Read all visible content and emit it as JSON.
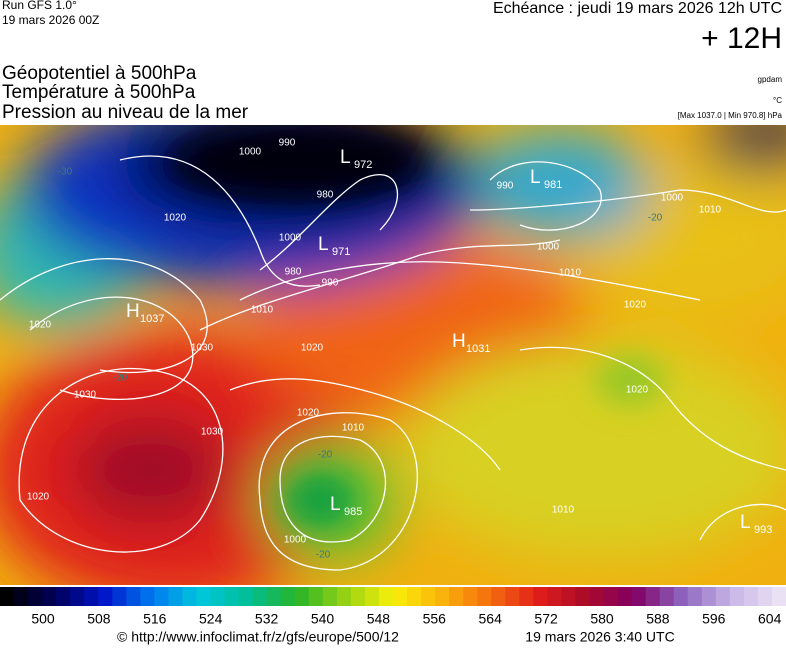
{
  "header": {
    "run": "Run GFS 1.0°",
    "run_date": "19 mars 2026 00Z",
    "echeance": "Echéance : jeudi 19 mars 2026 12h UTC",
    "lead": "+ 12H"
  },
  "titles": [
    "Géopotentiel à 500hPa",
    "Température à 500hPa",
    "Pression au niveau de la mer"
  ],
  "units": [
    "gpdam",
    "°C",
    "[Max 1037.0 | Min 970.8] hPa"
  ],
  "centers": [
    {
      "letter": "L",
      "value": 972
    },
    {
      "letter": "L",
      "value": 981
    },
    {
      "letter": "L",
      "value": 971
    },
    {
      "letter": "H",
      "value": 1037
    },
    {
      "letter": "H",
      "value": 1031
    },
    {
      "letter": "L",
      "value": 985
    },
    {
      "letter": "L",
      "value": 993
    }
  ],
  "isobar_labels": [
    990,
    1000,
    980,
    1000,
    980,
    990,
    990,
    1000,
    1010,
    1000,
    1010,
    1020,
    1020,
    1010,
    1020,
    1030,
    1020,
    1030,
    1030,
    1020,
    1010,
    1020,
    1020,
    1000,
    1010
  ],
  "temperature_labels": [
    -30,
    -20,
    -20,
    -20,
    -20
  ],
  "scale": {
    "labels": [
      500,
      508,
      516,
      524,
      532,
      540,
      548,
      556,
      564,
      572,
      580,
      588,
      596,
      604
    ]
  },
  "footer": {
    "url": "© http://www.infoclimat.fr/z/gfs/europe/500/12",
    "time": "19 mars 2026  3:40 UTC"
  }
}
